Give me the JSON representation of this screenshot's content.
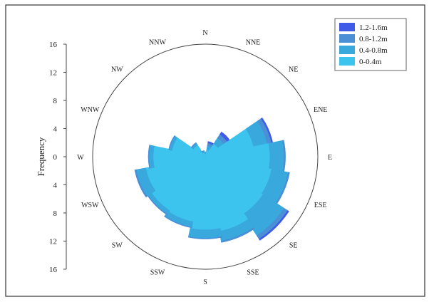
{
  "chart_data": {
    "type": "polar-stacked-bar",
    "ylabel": "Frequency",
    "yticks": [
      "16",
      "12",
      "8",
      "4",
      "0",
      "4",
      "8",
      "12",
      "16"
    ],
    "rmax": 16,
    "directions": [
      "N",
      "NNE",
      "NE",
      "ENE",
      "E",
      "ESE",
      "SE",
      "SSE",
      "S",
      "SSW",
      "SW",
      "WSW",
      "W",
      "WNW",
      "NW",
      "NNW"
    ],
    "series": [
      {
        "name": "0-0.4m",
        "color": "#3cc3ee",
        "values": [
          0.4,
          1.0,
          2.2,
          7.0,
          9.2,
          9.6,
          9.8,
          10.8,
          10.4,
          9.4,
          9.2,
          8.6,
          7.4,
          4.8,
          2.0,
          0.6
        ]
      },
      {
        "name": "0.4-0.8m",
        "color": "#39a8dc",
        "values": [
          0.2,
          0.6,
          1.0,
          2.0,
          2.0,
          2.4,
          3.6,
          1.4,
          1.2,
          0.8,
          0.6,
          1.4,
          0.6,
          0.4,
          0.3,
          0.2
        ]
      },
      {
        "name": "0.8-1.2m",
        "color": "#4b8fd6",
        "values": [
          0.1,
          0.4,
          0.6,
          0.6,
          0.2,
          0.2,
          0.6,
          0.2,
          0.1,
          0.1,
          0.1,
          0.2,
          0.1,
          0.1,
          0.1,
          0.1
        ]
      },
      {
        "name": "1.2-1.6m",
        "color": "#3f5be8",
        "values": [
          0.0,
          0.2,
          0.4,
          0.2,
          0.0,
          0.0,
          0.2,
          0.0,
          0.0,
          0.0,
          0.0,
          0.0,
          0.0,
          0.0,
          0.0,
          0.0
        ]
      }
    ],
    "legend": {
      "position": "top-right"
    },
    "legend_order": [
      "1.2-1.6m",
      "0.8-1.2m",
      "0.4-0.8m",
      "0-0.4m"
    ]
  }
}
